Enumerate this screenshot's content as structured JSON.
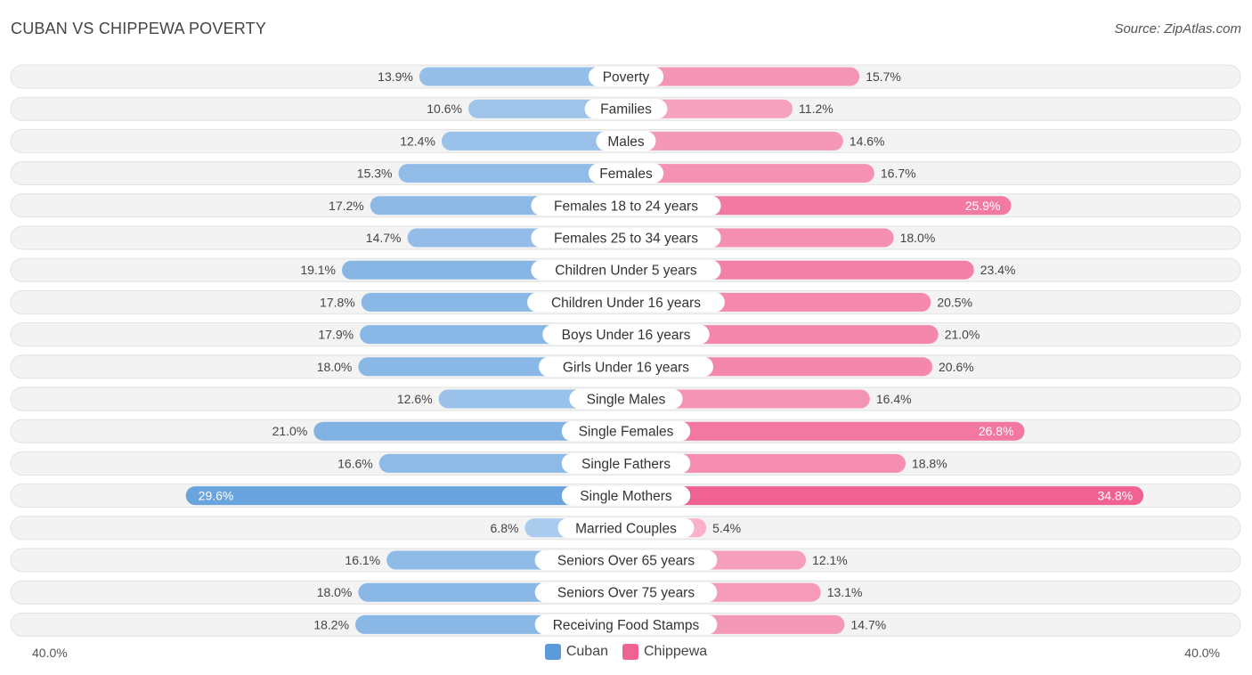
{
  "title": "CUBAN VS CHIPPEWA POVERTY",
  "source": "Source: ZipAtlas.com",
  "colors": {
    "cuban": "#5b9bdc",
    "chippewa": "#f06292"
  },
  "chart_data": {
    "type": "bar",
    "orientation": "horizontal-diverging",
    "title": "CUBAN VS CHIPPEWA POVERTY",
    "categories": [
      "Poverty",
      "Families",
      "Males",
      "Females",
      "Females 18 to 24 years",
      "Females 25 to 34 years",
      "Children Under 5 years",
      "Children Under 16 years",
      "Boys Under 16 years",
      "Girls Under 16 years",
      "Single Males",
      "Single Females",
      "Single Fathers",
      "Single Mothers",
      "Married Couples",
      "Seniors Over 65 years",
      "Seniors Over 75 years",
      "Receiving Food Stamps"
    ],
    "series": [
      {
        "name": "Cuban",
        "values": [
          13.9,
          10.6,
          12.4,
          15.3,
          17.2,
          14.7,
          19.1,
          17.8,
          17.9,
          18.0,
          12.6,
          21.0,
          16.6,
          29.6,
          6.8,
          16.1,
          18.0,
          18.2
        ]
      },
      {
        "name": "Chippewa",
        "values": [
          15.7,
          11.2,
          14.6,
          16.7,
          25.9,
          18.0,
          23.4,
          20.5,
          21.0,
          20.6,
          16.4,
          26.8,
          18.8,
          34.8,
          5.4,
          12.1,
          13.1,
          14.7
        ]
      }
    ],
    "xlim": [
      0,
      40
    ],
    "axis_min_label": "40.0%",
    "axis_max_label": "40.0%",
    "unit": "%",
    "legend": [
      "Cuban",
      "Chippewa"
    ],
    "legend_position": "bottom-center"
  }
}
